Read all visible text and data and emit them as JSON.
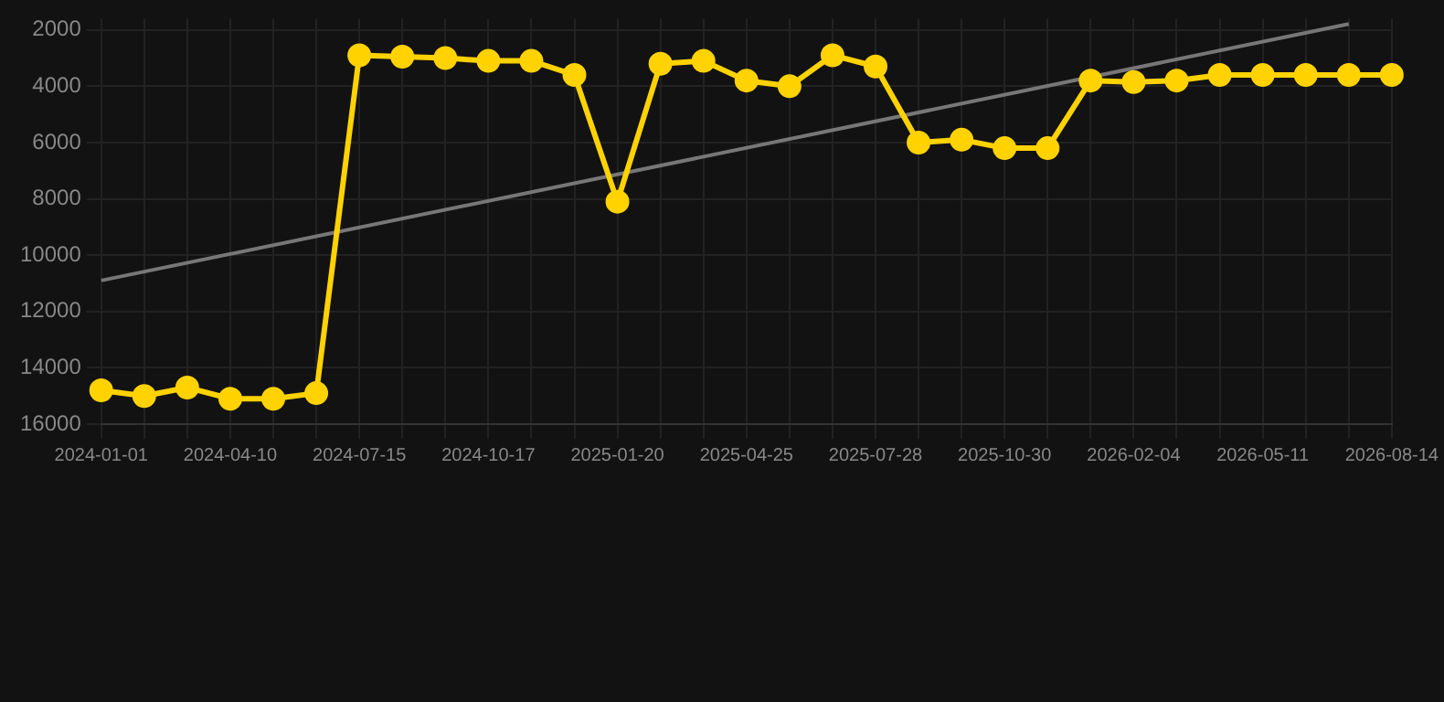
{
  "chart_data": {
    "type": "line",
    "categories": [
      "2024-01-01",
      null,
      null,
      "2024-04-10",
      null,
      null,
      "2024-07-15",
      null,
      null,
      "2024-10-17",
      null,
      null,
      "2025-01-20",
      null,
      null,
      "2025-04-25",
      null,
      null,
      "2025-07-28",
      null,
      null,
      "2025-10-30",
      null,
      null,
      "2026-02-04",
      null,
      null,
      "2026-05-11",
      null,
      null,
      "2026-08-14"
    ],
    "series": [
      {
        "color": "#ffd200",
        "marker": "circle",
        "values": [
          14800,
          15000,
          14700,
          15100,
          15100,
          14900,
          2900,
          2950,
          3000,
          3100,
          3100,
          3600,
          8100,
          3200,
          3100,
          3800,
          4000,
          2900,
          3300,
          6000,
          5900,
          6200,
          6200,
          3800,
          3850,
          3800,
          3600,
          3600,
          3600,
          3600,
          3600
        ]
      },
      {
        "type": "line",
        "color": "#777777",
        "marker": "none",
        "values": [
          10900,
          null,
          null,
          null,
          null,
          null,
          null,
          null,
          null,
          null,
          null,
          null,
          null,
          null,
          null,
          null,
          null,
          null,
          null,
          null,
          null,
          null,
          null,
          null,
          null,
          null,
          null,
          null,
          null,
          1790,
          null
        ]
      }
    ],
    "ylim": [
      16000,
      1600
    ],
    "yticks": [
      2000,
      4000,
      6000,
      8000,
      10000,
      12000,
      14000,
      16000
    ],
    "grid": true,
    "legend": false
  }
}
